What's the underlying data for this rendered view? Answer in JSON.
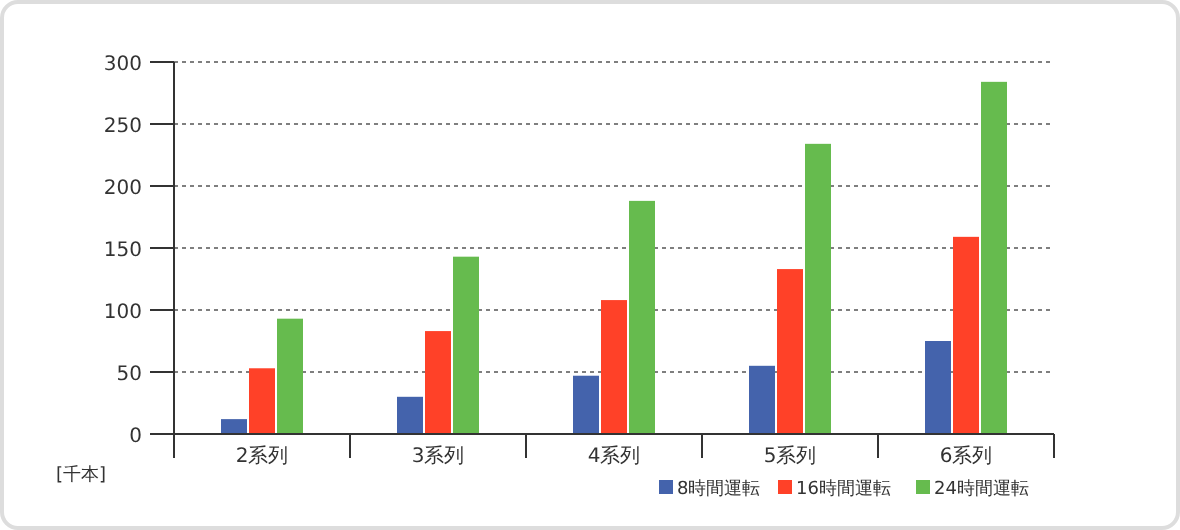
{
  "chart_data": {
    "type": "bar",
    "ylabel": "[千本]",
    "categories": [
      "2系列",
      "3系列",
      "4系列",
      "5系列",
      "6系列"
    ],
    "series": [
      {
        "name": "8時間運転",
        "color": "#4463ac",
        "values": [
          12,
          30,
          47,
          55,
          75
        ]
      },
      {
        "name": "16時間運転",
        "color": "#ff4128",
        "values": [
          53,
          83,
          108,
          133,
          159
        ]
      },
      {
        "name": "24時間運転",
        "color": "#66bb4e",
        "values": [
          93,
          143,
          188,
          234,
          284
        ]
      }
    ],
    "ylim": [
      0,
      300
    ],
    "yticks": [
      0,
      50,
      100,
      150,
      200,
      250,
      300
    ],
    "grid": "y",
    "legend": "bottom right"
  }
}
